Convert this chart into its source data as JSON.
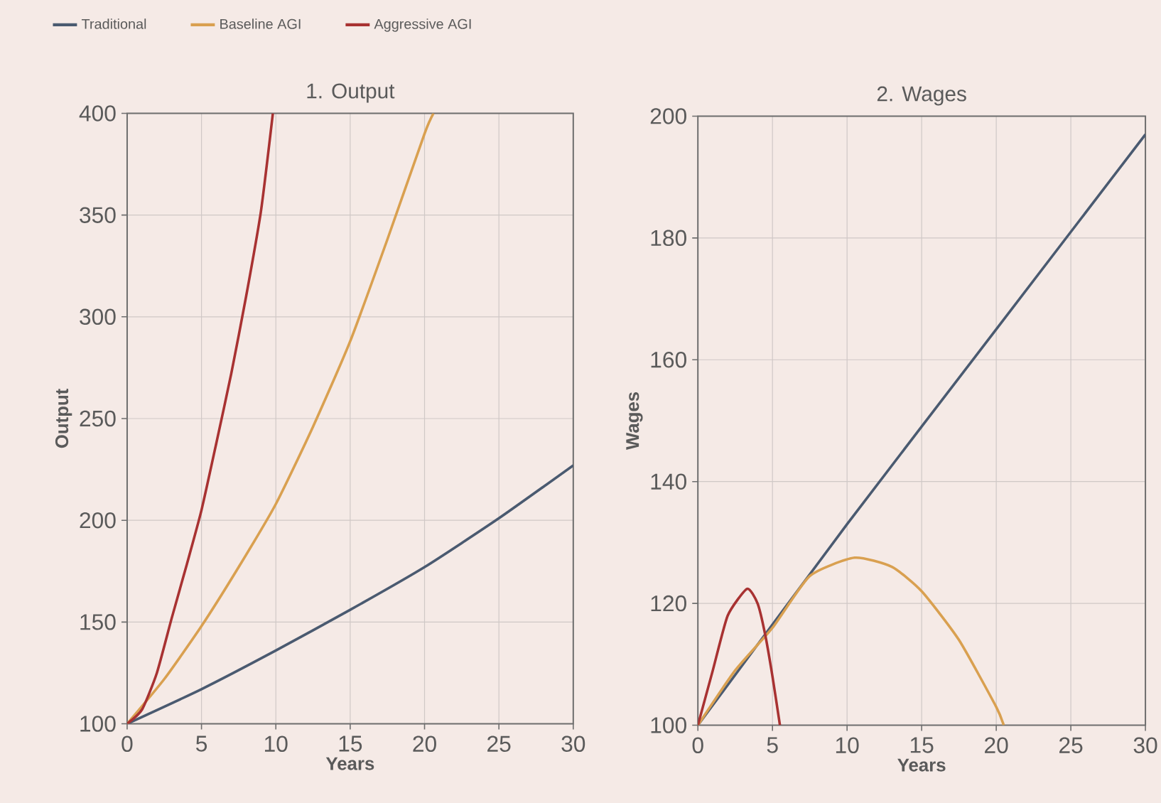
{
  "chart_data": [
    {
      "type": "line",
      "title": "1. Output",
      "xlabel": "Years",
      "ylabel": "Output",
      "xlim": [
        0,
        30
      ],
      "ylim": [
        100,
        400
      ],
      "xticks": [
        0,
        5,
        10,
        15,
        20,
        25,
        30
      ],
      "yticks": [
        100,
        150,
        200,
        250,
        300,
        350,
        400
      ],
      "grid": true,
      "legend": "top",
      "series": [
        {
          "name": "Traditional",
          "color": "#4a5a70",
          "x": [
            0,
            5,
            10,
            15,
            20,
            25,
            30
          ],
          "values": [
            100,
            117,
            136,
            156,
            177,
            201,
            227
          ]
        },
        {
          "name": "Baseline AGI",
          "color": "#d9a050",
          "x": [
            0,
            2.5,
            5,
            7.5,
            10,
            12.5,
            15,
            17.5,
            20,
            20.6
          ],
          "values": [
            100,
            122,
            148,
            177,
            208,
            246,
            288,
            338,
            390,
            400
          ]
        },
        {
          "name": "Aggressive AGI",
          "color": "#a83232",
          "x": [
            0,
            1,
            2,
            3,
            4,
            5,
            6,
            7,
            8,
            9,
            9.8
          ],
          "values": [
            100,
            107,
            125,
            152,
            178,
            205,
            238,
            272,
            310,
            352,
            400
          ]
        }
      ]
    },
    {
      "type": "line",
      "title": "2. Wages",
      "xlabel": "Years",
      "ylabel": "Wages",
      "xlim": [
        0,
        30
      ],
      "ylim": [
        100,
        200
      ],
      "xticks": [
        0,
        5,
        10,
        15,
        20,
        25,
        30
      ],
      "yticks": [
        100,
        120,
        140,
        160,
        180,
        200
      ],
      "grid": true,
      "series": [
        {
          "color": "#4a5a70",
          "x": [
            0,
            10,
            20,
            30
          ],
          "values": [
            100,
            133,
            165,
            197
          ]
        },
        {
          "color": "#d9a050",
          "x": [
            0,
            2.5,
            5,
            7.5,
            10.5,
            13,
            15,
            17.5,
            20,
            20.5
          ],
          "values": [
            100,
            109,
            116,
            124.5,
            127.5,
            126,
            122,
            114,
            103,
            100
          ]
        },
        {
          "color": "#a83232",
          "x": [
            0,
            1,
            2,
            3.3,
            4,
            4.5,
            5,
            5.5
          ],
          "values": [
            100,
            109,
            118,
            122.4,
            120,
            115,
            108,
            100
          ]
        }
      ]
    }
  ]
}
